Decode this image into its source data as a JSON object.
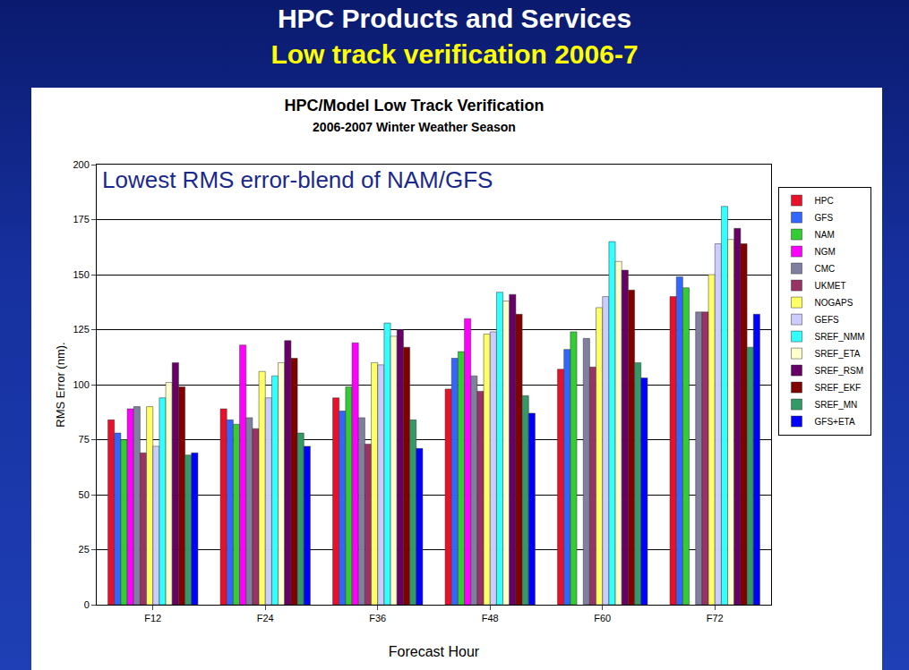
{
  "slide": {
    "title": "HPC Products and Services",
    "subtitle": "Low track verification 2006-7"
  },
  "chart_data": {
    "type": "bar",
    "title": "HPC/Model Low Track Verification",
    "subtitle": "2006-2007 Winter Weather Season",
    "annotations": [
      "Lowest RMS error-blend of NAM/GFS"
    ],
    "x_label": "Forecast Hour",
    "y_label": "RMS Error (nm).",
    "categories": [
      "F12",
      "F24",
      "F36",
      "F48",
      "F60",
      "F72"
    ],
    "series": [
      {
        "name": "HPC",
        "color": "#e8102a",
        "values": [
          84,
          89,
          94,
          98,
          107,
          140
        ]
      },
      {
        "name": "GFS",
        "color": "#3366ff",
        "values": [
          78,
          84,
          88,
          112,
          116,
          149
        ]
      },
      {
        "name": "NAM",
        "color": "#33cc33",
        "values": [
          75,
          82,
          99,
          115,
          124,
          144
        ]
      },
      {
        "name": "NGM",
        "color": "#ff00ff",
        "values": [
          89,
          118,
          119,
          130,
          null,
          null
        ]
      },
      {
        "name": "CMC",
        "color": "#7f7f9f",
        "values": [
          90,
          85,
          85,
          104,
          121,
          133
        ]
      },
      {
        "name": "UKMET",
        "color": "#993366",
        "values": [
          69,
          80,
          73,
          97,
          108,
          133
        ]
      },
      {
        "name": "NOGAPS",
        "color": "#ffff66",
        "values": [
          90,
          106,
          110,
          123,
          135,
          150
        ]
      },
      {
        "name": "GEFS",
        "color": "#ccccff",
        "values": [
          72,
          94,
          109,
          124,
          140,
          164
        ]
      },
      {
        "name": "SREF_NMM",
        "color": "#33ffff",
        "values": [
          94,
          104,
          128,
          142,
          165,
          181
        ]
      },
      {
        "name": "SREF_ETA",
        "color": "#ffffcc",
        "values": [
          101,
          110,
          122,
          138,
          156,
          166
        ]
      },
      {
        "name": "SREF_RSM",
        "color": "#660066",
        "values": [
          110,
          120,
          125,
          141,
          152,
          171
        ]
      },
      {
        "name": "SREF_EKF",
        "color": "#800000",
        "values": [
          99,
          112,
          117,
          132,
          143,
          164
        ]
      },
      {
        "name": "SREF_MN",
        "color": "#339966",
        "values": [
          68,
          78,
          84,
          95,
          110,
          117
        ]
      },
      {
        "name": "GFS+ETA",
        "color": "#0000ff",
        "values": [
          69,
          72,
          71,
          87,
          103,
          132
        ]
      }
    ],
    "ylim": [
      0,
      200
    ],
    "yticks": [
      0,
      25,
      50,
      75,
      100,
      125,
      150,
      175,
      200
    ],
    "grid": true,
    "legend": "right"
  }
}
